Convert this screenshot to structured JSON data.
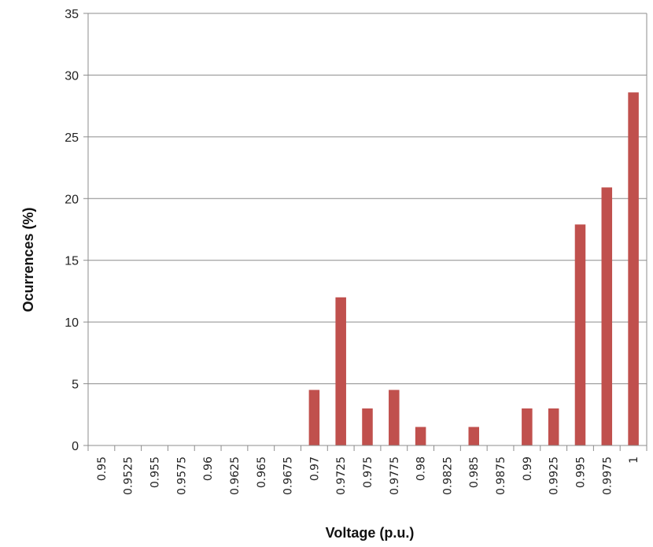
{
  "chart_data": {
    "type": "bar",
    "xlabel": "Voltage (p.u.)",
    "ylabel": "Ocurrences (%)",
    "ylim": [
      0,
      35
    ],
    "yticks": [
      "0",
      "5",
      "10",
      "15",
      "20",
      "25",
      "30",
      "35"
    ],
    "ytick_values": [
      0,
      5,
      10,
      15,
      20,
      25,
      30,
      35
    ],
    "grid": true,
    "categories": [
      "0.95",
      "0.9525",
      "0.955",
      "0.9575",
      "0.96",
      "0.9625",
      "0.965",
      "0.9675",
      "0.97",
      "0.9725",
      "0.975",
      "0.9775",
      "0.98",
      "0.9825",
      "0.985",
      "0.9875",
      "0.99",
      "0.9925",
      "0.995",
      "0.9975",
      "1"
    ],
    "values": [
      0,
      0,
      0,
      0,
      0,
      0,
      0,
      0,
      4.5,
      12,
      3,
      4.5,
      1.5,
      0,
      1.5,
      0,
      3,
      3,
      17.9,
      20.9,
      28.6
    ],
    "bar_color": "#c0504d",
    "grid_color": "#8c8c8c"
  }
}
